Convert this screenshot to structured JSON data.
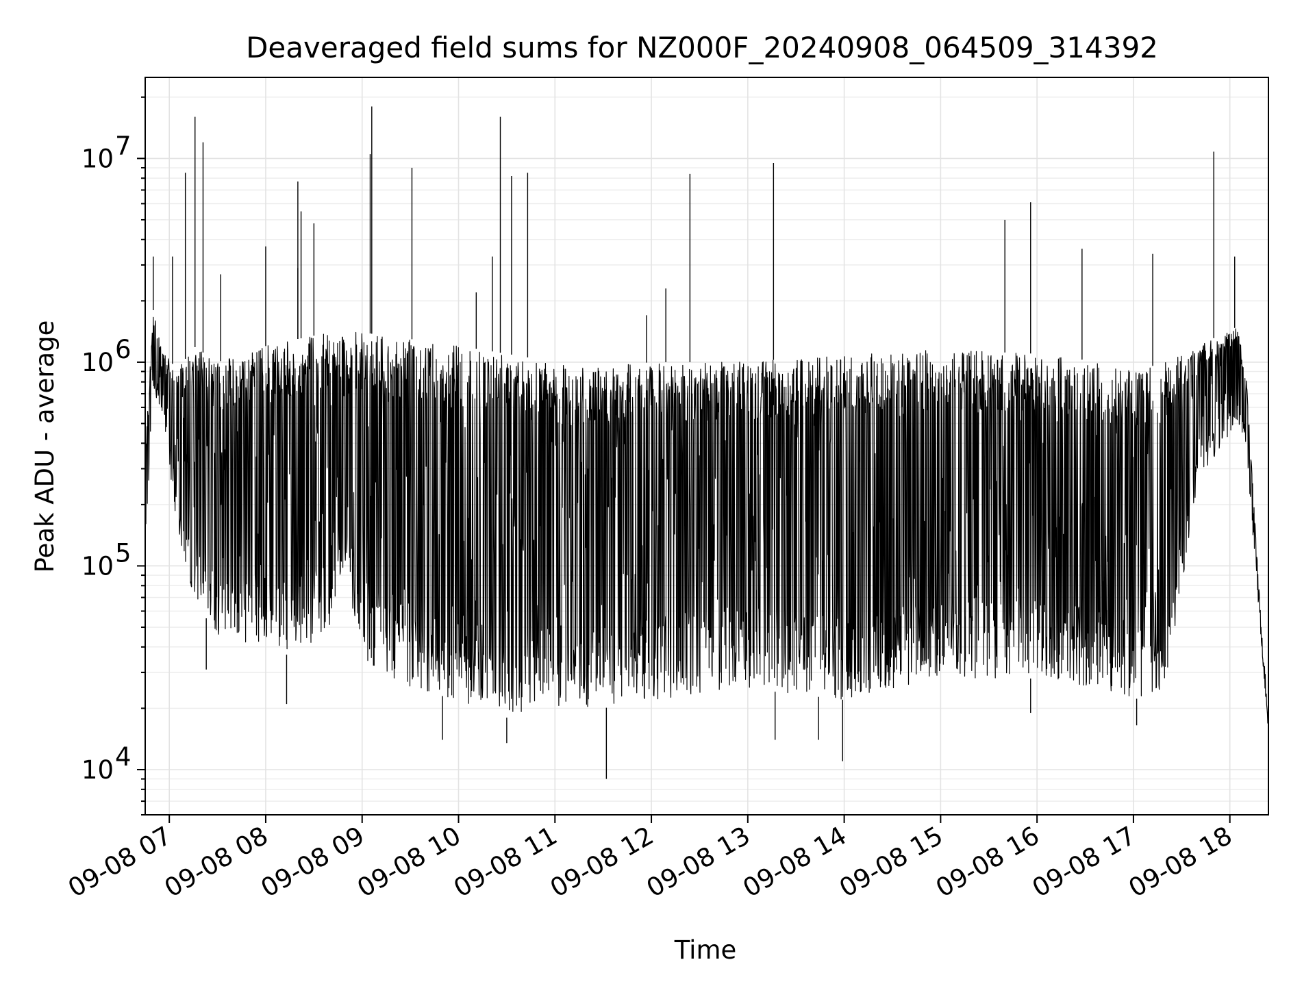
{
  "chart_data": {
    "type": "line",
    "title": "Deaveraged field sums for NZ000F_20240908_064509_314392",
    "xlabel": "Time",
    "ylabel": "Peak ADU - average",
    "yscale": "log",
    "ylim": [
      6000,
      25000000
    ],
    "xlim": [
      "2024-09-08 06:45",
      "2024-09-08 18:24"
    ],
    "grid": true,
    "line_color": "#000000",
    "grid_color": "#e3e3e3",
    "x_ticks": [
      {
        "t": "2024-09-08 07:00",
        "label": "09-08 07"
      },
      {
        "t": "2024-09-08 08:00",
        "label": "09-08 08"
      },
      {
        "t": "2024-09-08 09:00",
        "label": "09-08 09"
      },
      {
        "t": "2024-09-08 10:00",
        "label": "09-08 10"
      },
      {
        "t": "2024-09-08 11:00",
        "label": "09-08 11"
      },
      {
        "t": "2024-09-08 12:00",
        "label": "09-08 12"
      },
      {
        "t": "2024-09-08 13:00",
        "label": "09-08 13"
      },
      {
        "t": "2024-09-08 14:00",
        "label": "09-08 14"
      },
      {
        "t": "2024-09-08 15:00",
        "label": "09-08 15"
      },
      {
        "t": "2024-09-08 16:00",
        "label": "09-08 16"
      },
      {
        "t": "2024-09-08 17:00",
        "label": "09-08 17"
      },
      {
        "t": "2024-09-08 18:00",
        "label": "09-08 18"
      }
    ],
    "y_ticks": [
      {
        "value": 10000,
        "base": "10",
        "exp": "4"
      },
      {
        "value": 100000,
        "base": "10",
        "exp": "5"
      },
      {
        "value": 1000000,
        "base": "10",
        "exp": "6"
      },
      {
        "value": 10000000,
        "base": "10",
        "exp": "7"
      }
    ],
    "envelope": [
      {
        "t": "2024-09-08 06:45",
        "low": 120000,
        "high": 350000
      },
      {
        "t": "2024-09-08 06:50",
        "low": 700000,
        "high": 1800000
      },
      {
        "t": "2024-09-08 06:55",
        "low": 600000,
        "high": 1200000
      },
      {
        "t": "2024-09-08 07:05",
        "low": 150000,
        "high": 900000
      },
      {
        "t": "2024-09-08 07:15",
        "low": 70000,
        "high": 1200000
      },
      {
        "t": "2024-09-08 07:30",
        "low": 45000,
        "high": 1000000
      },
      {
        "t": "2024-09-08 08:00",
        "low": 40000,
        "high": 1200000
      },
      {
        "t": "2024-09-08 08:20",
        "low": 35000,
        "high": 1300000
      },
      {
        "t": "2024-09-08 08:40",
        "low": 50000,
        "high": 1400000
      },
      {
        "t": "2024-09-08 08:50",
        "low": 90000,
        "high": 1400000
      },
      {
        "t": "2024-09-08 09:00",
        "low": 35000,
        "high": 1400000
      },
      {
        "t": "2024-09-08 09:30",
        "low": 25000,
        "high": 1300000
      },
      {
        "t": "2024-09-08 10:00",
        "low": 22000,
        "high": 1200000
      },
      {
        "t": "2024-09-08 10:30",
        "low": 18000,
        "high": 1100000
      },
      {
        "t": "2024-09-08 11:00",
        "low": 20000,
        "high": 1000000
      },
      {
        "t": "2024-09-08 11:30",
        "low": 20000,
        "high": 950000
      },
      {
        "t": "2024-09-08 12:00",
        "low": 22000,
        "high": 1000000
      },
      {
        "t": "2024-09-08 13:00",
        "low": 25000,
        "high": 1000000
      },
      {
        "t": "2024-09-08 14:00",
        "low": 22000,
        "high": 1100000
      },
      {
        "t": "2024-09-08 15:00",
        "low": 28000,
        "high": 1150000
      },
      {
        "t": "2024-09-08 16:00",
        "low": 28000,
        "high": 1100000
      },
      {
        "t": "2024-09-08 16:40",
        "low": 25000,
        "high": 1000000
      },
      {
        "t": "2024-09-08 17:00",
        "low": 22000,
        "high": 900000
      },
      {
        "t": "2024-09-08 17:20",
        "low": 25000,
        "high": 1000000
      },
      {
        "t": "2024-09-08 17:40",
        "low": 250000,
        "high": 1200000
      },
      {
        "t": "2024-09-08 18:05",
        "low": 500000,
        "high": 1500000
      },
      {
        "t": "2024-09-08 18:10",
        "low": 400000,
        "high": 900000
      },
      {
        "t": "2024-09-08 18:18",
        "low": 60000,
        "high": 80000
      },
      {
        "t": "2024-09-08 18:24",
        "low": 15000,
        "high": 18000
      }
    ],
    "peaks": [
      {
        "t": "2024-09-08 06:50",
        "value": 3300000
      },
      {
        "t": "2024-09-08 07:02",
        "value": 3300000
      },
      {
        "t": "2024-09-08 07:10",
        "value": 8500000
      },
      {
        "t": "2024-09-08 07:16",
        "value": 16000000
      },
      {
        "t": "2024-09-08 07:21",
        "value": 12000000
      },
      {
        "t": "2024-09-08 07:32",
        "value": 2700000
      },
      {
        "t": "2024-09-08 08:00",
        "value": 3700000
      },
      {
        "t": "2024-09-08 08:20",
        "value": 2900000
      },
      {
        "t": "2024-09-08 08:20",
        "value": 7700000
      },
      {
        "t": "2024-09-08 08:22",
        "value": 5500000
      },
      {
        "t": "2024-09-08 08:30",
        "value": 4800000
      },
      {
        "t": "2024-09-08 09:05",
        "value": 10500000
      },
      {
        "t": "2024-09-08 09:06",
        "value": 18000000
      },
      {
        "t": "2024-09-08 09:31",
        "value": 9000000
      },
      {
        "t": "2024-09-08 10:11",
        "value": 2200000
      },
      {
        "t": "2024-09-08 10:21",
        "value": 3300000
      },
      {
        "t": "2024-09-08 10:26",
        "value": 16000000
      },
      {
        "t": "2024-09-08 10:33",
        "value": 8200000
      },
      {
        "t": "2024-09-08 10:43",
        "value": 8500000
      },
      {
        "t": "2024-09-08 11:57",
        "value": 1700000
      },
      {
        "t": "2024-09-08 12:09",
        "value": 2300000
      },
      {
        "t": "2024-09-08 12:24",
        "value": 8400000
      },
      {
        "t": "2024-09-08 13:16",
        "value": 9500000
      },
      {
        "t": "2024-09-08 15:40",
        "value": 5000000
      },
      {
        "t": "2024-09-08 15:56",
        "value": 6100000
      },
      {
        "t": "2024-09-08 16:28",
        "value": 3600000
      },
      {
        "t": "2024-09-08 17:12",
        "value": 3400000
      },
      {
        "t": "2024-09-08 17:50",
        "value": 10800000
      },
      {
        "t": "2024-09-08 18:03",
        "value": 3300000
      }
    ],
    "troughs": [
      {
        "t": "2024-09-08 07:23",
        "value": 31000
      },
      {
        "t": "2024-09-08 08:13",
        "value": 21000
      },
      {
        "t": "2024-09-08 09:50",
        "value": 14000
      },
      {
        "t": "2024-09-08 10:30",
        "value": 13500
      },
      {
        "t": "2024-09-08 11:32",
        "value": 9000
      },
      {
        "t": "2024-09-08 13:17",
        "value": 14000
      },
      {
        "t": "2024-09-08 13:44",
        "value": 14000
      },
      {
        "t": "2024-09-08 13:59",
        "value": 11000
      },
      {
        "t": "2024-09-08 15:56",
        "value": 19000
      },
      {
        "t": "2024-09-08 17:02",
        "value": 16500
      }
    ]
  }
}
